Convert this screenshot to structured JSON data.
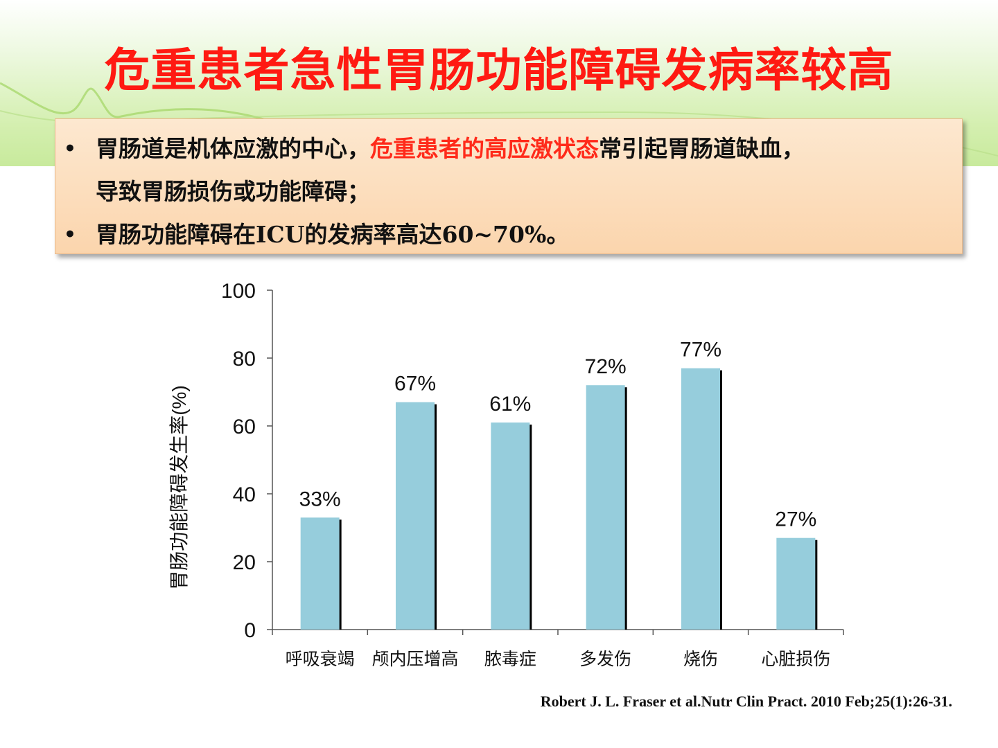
{
  "slide": {
    "title": "危重患者急性胃肠功能障碍发病率较高",
    "bullets": [
      {
        "part1": "胃肠道是机体应激的中心，",
        "highlight": "危重患者的高应激状态",
        "part2": "常引起胃肠道缺血，",
        "line2": "导致胃肠损伤或功能障碍；"
      },
      {
        "text": "胃肠功能障碍在ICU的发病率高达60~70%。"
      }
    ],
    "bullet_symbol": "•",
    "citation": "Robert J. L. Fraser et al.Nutr Clin Pract. 2010 Feb;25(1):26-31.",
    "colors": {
      "title": "#ff1a12",
      "highlight": "#ff2a1a",
      "bar": "#96cddc",
      "box": "#fbd5ad"
    }
  },
  "chart_data": {
    "type": "bar",
    "categories": [
      "呼吸衰竭",
      "颅内压增高",
      "脓毒症",
      "多发伤",
      "烧伤",
      "心脏损伤"
    ],
    "values": [
      33,
      67,
      61,
      72,
      77,
      27
    ],
    "data_labels": [
      "33%",
      "67%",
      "61%",
      "72%",
      "77%",
      "27%"
    ],
    "ylabel": "胃肠功能障碍发生率(%)",
    "xlabel": "",
    "ylim": [
      0,
      100
    ],
    "yticks": [
      0,
      20,
      40,
      60,
      80,
      100
    ],
    "grid": false,
    "legend": "none"
  }
}
